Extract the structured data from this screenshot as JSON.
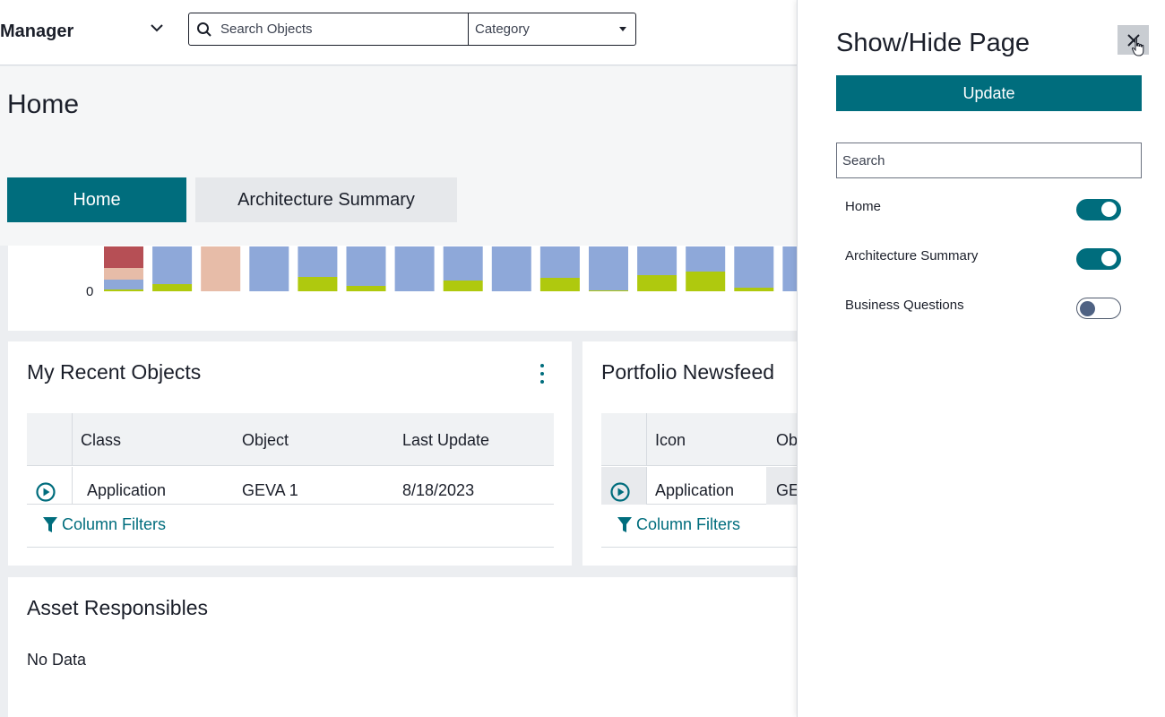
{
  "header": {
    "app_title": "Manager",
    "search_placeholder": "Search Objects",
    "category_label": "Category"
  },
  "page": {
    "title": "Home",
    "tabs": [
      {
        "label": "Home",
        "active": true
      },
      {
        "label": "Architecture Summary",
        "active": false
      }
    ]
  },
  "chart_data": {
    "type": "bar",
    "stacked": true,
    "visible_tick": "0",
    "bars": [
      {
        "segments": [
          {
            "color": "#b64f55",
            "h": 24
          },
          {
            "color": "#e7bca8",
            "h": 13
          },
          {
            "color": "#8ea8d9",
            "h": 11
          },
          {
            "color": "#afc90e",
            "h": 2
          }
        ]
      },
      {
        "segments": [
          {
            "color": "#8ea8d9",
            "h": 42
          },
          {
            "color": "#afc90e",
            "h": 8
          }
        ]
      },
      {
        "segments": [
          {
            "color": "#e7bca8",
            "h": 50
          }
        ]
      },
      {
        "segments": [
          {
            "color": "#8ea8d9",
            "h": 50
          }
        ]
      },
      {
        "segments": [
          {
            "color": "#8ea8d9",
            "h": 34
          },
          {
            "color": "#afc90e",
            "h": 16
          }
        ]
      },
      {
        "segments": [
          {
            "color": "#8ea8d9",
            "h": 44
          },
          {
            "color": "#afc90e",
            "h": 6
          }
        ]
      },
      {
        "segments": [
          {
            "color": "#8ea8d9",
            "h": 50
          }
        ]
      },
      {
        "segments": [
          {
            "color": "#8ea8d9",
            "h": 38
          },
          {
            "color": "#afc90e",
            "h": 12
          }
        ]
      },
      {
        "segments": [
          {
            "color": "#8ea8d9",
            "h": 50
          }
        ]
      },
      {
        "segments": [
          {
            "color": "#8ea8d9",
            "h": 35
          },
          {
            "color": "#afc90e",
            "h": 15
          }
        ]
      },
      {
        "segments": [
          {
            "color": "#8ea8d9",
            "h": 49
          },
          {
            "color": "#afc90e",
            "h": 1
          }
        ]
      },
      {
        "segments": [
          {
            "color": "#8ea8d9",
            "h": 32
          },
          {
            "color": "#afc90e",
            "h": 18
          }
        ]
      },
      {
        "segments": [
          {
            "color": "#8ea8d9",
            "h": 28
          },
          {
            "color": "#afc90e",
            "h": 22
          }
        ]
      },
      {
        "segments": [
          {
            "color": "#8ea8d9",
            "h": 46
          },
          {
            "color": "#afc90e",
            "h": 4
          }
        ]
      },
      {
        "segments": [
          {
            "color": "#8ea8d9",
            "h": 50
          }
        ]
      }
    ]
  },
  "recent_objects": {
    "title": "My Recent Objects",
    "columns": [
      "Class",
      "Object",
      "Last Update"
    ],
    "rows": [
      {
        "class": "Application",
        "object": "GEVA 1",
        "last_update": "8/18/2023"
      }
    ],
    "filters_label": "Column Filters"
  },
  "newsfeed": {
    "title": "Portfolio Newsfeed",
    "columns": [
      "Icon",
      "Ob"
    ],
    "rows": [
      {
        "icon": "Application",
        "object": "GE"
      }
    ],
    "filters_label": "Column Filters"
  },
  "asset_responsibles": {
    "title": "Asset Responsibles",
    "empty_text": "No Data"
  },
  "panel": {
    "title": "Show/Hide Page",
    "update_label": "Update",
    "search_placeholder": "Search",
    "pages": [
      {
        "label": "Home",
        "visible": true
      },
      {
        "label": "Architecture Summary",
        "visible": true
      },
      {
        "label": "Business Questions",
        "visible": false
      }
    ]
  },
  "colors": {
    "accent": "#006d7d",
    "page_bg": "#eceef1"
  }
}
